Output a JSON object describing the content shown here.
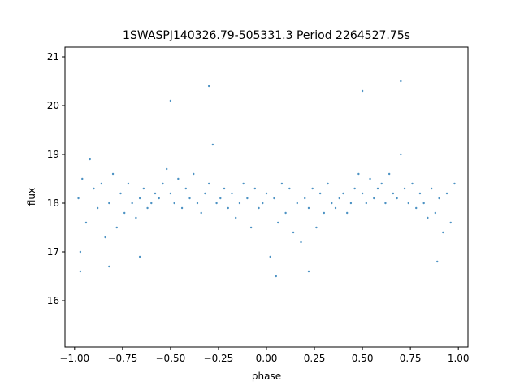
{
  "chart_data": {
    "type": "scatter",
    "title": "1SWASPJ140326.79-505331.3 Period 2264527.75s",
    "xlabel": "phase",
    "ylabel": "flux",
    "xlim": [
      -1.05,
      1.05
    ],
    "ylim": [
      15.05,
      21.2
    ],
    "x_ticks": [
      -1.0,
      -0.75,
      -0.5,
      -0.25,
      0.0,
      0.25,
      0.5,
      0.75,
      1.0
    ],
    "x_tick_labels": [
      "−1.00",
      "−0.75",
      "−0.50",
      "−0.25",
      "0.00",
      "0.25",
      "0.50",
      "0.75",
      "1.00"
    ],
    "y_ticks": [
      16,
      17,
      18,
      19,
      20,
      21
    ],
    "y_tick_labels": [
      "16",
      "17",
      "18",
      "19",
      "20",
      "21"
    ],
    "grid": false,
    "legend": "none",
    "marker_color": "#1f77b4",
    "series": [
      {
        "points": [
          [
            -0.98,
            18.1
          ],
          [
            -0.97,
            17.0
          ],
          [
            -0.96,
            18.5
          ],
          [
            -0.94,
            17.6
          ],
          [
            -0.92,
            18.9
          ],
          [
            -0.9,
            18.3
          ],
          [
            -0.88,
            17.9
          ],
          [
            -0.86,
            18.4
          ],
          [
            -0.84,
            17.3
          ],
          [
            -0.82,
            18.0
          ],
          [
            -0.8,
            18.6
          ],
          [
            -0.78,
            17.5
          ],
          [
            -0.76,
            18.2
          ],
          [
            -0.74,
            17.8
          ],
          [
            -0.72,
            18.4
          ],
          [
            -0.7,
            18.0
          ],
          [
            -0.68,
            17.7
          ],
          [
            -0.66,
            18.1
          ],
          [
            -0.64,
            18.3
          ],
          [
            -0.62,
            17.9
          ],
          [
            -0.6,
            18.0
          ],
          [
            -0.58,
            18.2
          ],
          [
            -0.56,
            18.1
          ],
          [
            -0.54,
            18.4
          ],
          [
            -0.52,
            18.7
          ],
          [
            -0.5,
            18.2
          ],
          [
            -0.48,
            18.0
          ],
          [
            -0.46,
            18.5
          ],
          [
            -0.44,
            17.9
          ],
          [
            -0.42,
            18.3
          ],
          [
            -0.4,
            18.1
          ],
          [
            -0.38,
            18.6
          ],
          [
            -0.36,
            18.0
          ],
          [
            -0.34,
            17.8
          ],
          [
            -0.32,
            18.2
          ],
          [
            -0.3,
            18.4
          ],
          [
            -0.28,
            19.2
          ],
          [
            -0.26,
            18.0
          ],
          [
            -0.24,
            18.1
          ],
          [
            -0.22,
            18.3
          ],
          [
            -0.2,
            17.9
          ],
          [
            -0.18,
            18.2
          ],
          [
            -0.16,
            17.7
          ],
          [
            -0.14,
            18.0
          ],
          [
            -0.12,
            18.4
          ],
          [
            -0.1,
            18.1
          ],
          [
            -0.08,
            17.5
          ],
          [
            -0.06,
            18.3
          ],
          [
            -0.04,
            17.9
          ],
          [
            -0.02,
            18.0
          ],
          [
            0.0,
            18.2
          ],
          [
            0.02,
            16.9
          ],
          [
            0.04,
            18.1
          ],
          [
            0.06,
            17.6
          ],
          [
            0.08,
            18.4
          ],
          [
            0.1,
            17.8
          ],
          [
            0.12,
            18.3
          ],
          [
            0.14,
            17.4
          ],
          [
            0.16,
            18.0
          ],
          [
            0.18,
            17.2
          ],
          [
            0.2,
            18.1
          ],
          [
            0.22,
            17.9
          ],
          [
            0.24,
            18.3
          ],
          [
            0.26,
            17.5
          ],
          [
            0.28,
            18.2
          ],
          [
            0.3,
            17.8
          ],
          [
            0.32,
            18.4
          ],
          [
            0.34,
            18.0
          ],
          [
            0.36,
            17.9
          ],
          [
            0.38,
            18.1
          ],
          [
            0.4,
            18.2
          ],
          [
            0.42,
            17.8
          ],
          [
            0.44,
            18.0
          ],
          [
            0.46,
            18.3
          ],
          [
            0.48,
            18.6
          ],
          [
            0.5,
            18.2
          ],
          [
            0.52,
            18.0
          ],
          [
            0.54,
            18.5
          ],
          [
            0.56,
            18.1
          ],
          [
            0.58,
            18.3
          ],
          [
            0.6,
            18.4
          ],
          [
            0.62,
            18.0
          ],
          [
            0.64,
            18.6
          ],
          [
            0.66,
            18.2
          ],
          [
            0.68,
            18.1
          ],
          [
            0.7,
            19.0
          ],
          [
            0.72,
            18.3
          ],
          [
            0.74,
            18.0
          ],
          [
            0.76,
            18.4
          ],
          [
            0.78,
            17.9
          ],
          [
            0.8,
            18.2
          ],
          [
            0.82,
            18.0
          ],
          [
            0.84,
            17.7
          ],
          [
            0.86,
            18.3
          ],
          [
            0.88,
            17.8
          ],
          [
            0.9,
            18.1
          ],
          [
            0.92,
            17.4
          ],
          [
            0.94,
            18.2
          ],
          [
            0.96,
            17.6
          ],
          [
            0.98,
            18.4
          ],
          [
            -0.97,
            16.6
          ],
          [
            -0.5,
            20.1
          ],
          [
            -0.3,
            20.4
          ],
          [
            0.5,
            20.3
          ],
          [
            0.7,
            20.5
          ],
          [
            -0.82,
            16.7
          ],
          [
            0.05,
            16.5
          ],
          [
            0.22,
            16.6
          ],
          [
            -0.66,
            16.9
          ],
          [
            0.89,
            16.8
          ]
        ]
      }
    ]
  }
}
